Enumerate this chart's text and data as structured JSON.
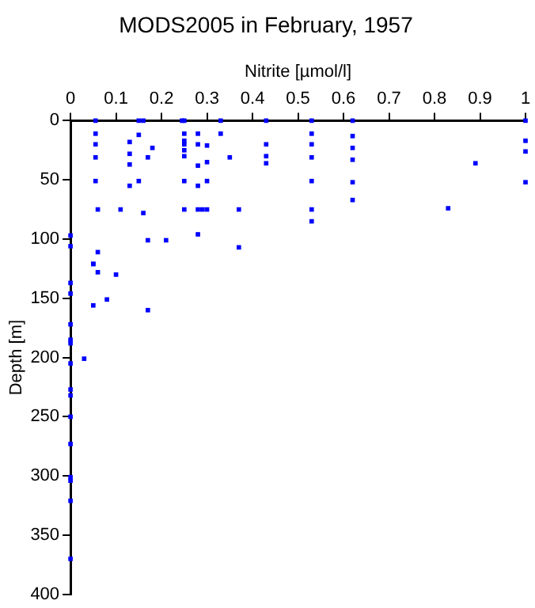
{
  "chart_data": {
    "type": "scatter",
    "title": "MODS2005 in February, 1957",
    "xlabel": "Nitrite [µmol/l]",
    "ylabel": "Depth [m]",
    "marker": "square",
    "grid": false,
    "legend": false,
    "xlim": [
      0,
      1
    ],
    "xticks": [
      0,
      0.1,
      0.2,
      0.3,
      0.4,
      0.5,
      0.6,
      0.7,
      0.8,
      0.9,
      1
    ],
    "ylim": [
      400,
      0
    ],
    "yticks": [
      0,
      50,
      100,
      150,
      200,
      250,
      300,
      350,
      400
    ],
    "series": [
      {
        "color": "#0000ff",
        "x": [
          0.055,
          0.055,
          0.055,
          0.055,
          0.055,
          0.06,
          0.06,
          0.05,
          0.13,
          0.13,
          0.13,
          0.13,
          0.11,
          0.15,
          0.15,
          0.15,
          0.16,
          0.16,
          0.17,
          0.18,
          0.17,
          0.21,
          0.25,
          0.25,
          0.25,
          0.25,
          0.25,
          0.25,
          0.25,
          0.25,
          0.245,
          0.28,
          0.28,
          0.28,
          0.28,
          0.28,
          0.28,
          0.3,
          0.3,
          0.3,
          0.3,
          0.29,
          0.33,
          0.33,
          0.35,
          0.37,
          0.37,
          0.43,
          0.43,
          0.43,
          0.43,
          0,
          0,
          0.53,
          0.53,
          0.53,
          0.53,
          0.53,
          0.53,
          0.53,
          0.62,
          0.62,
          0.62,
          0.62,
          0.62,
          0.62,
          0.89,
          0.83,
          1,
          1,
          1,
          1,
          0,
          0,
          0,
          0,
          0,
          0,
          0,
          0,
          0,
          0,
          0,
          0,
          0,
          0,
          0.05,
          0.08,
          0.17,
          0.03,
          0.05,
          0.06,
          0.1
        ],
        "values": [
          0,
          11,
          20,
          31,
          51,
          75,
          111,
          121,
          18,
          28,
          37,
          55,
          75,
          0,
          12,
          51,
          0,
          78,
          31,
          23,
          101,
          101,
          0,
          11,
          17,
          20,
          25,
          30,
          51,
          75,
          0,
          11,
          20,
          38,
          55,
          75,
          96,
          21,
          35,
          51,
          75,
          75,
          0,
          11,
          31,
          75,
          107,
          0,
          20,
          30,
          36,
          97,
          106,
          0,
          11,
          20,
          31,
          51,
          75,
          85,
          0,
          13,
          23,
          33,
          52,
          67,
          36,
          74,
          0,
          17,
          26,
          52,
          137,
          146,
          172,
          185,
          188,
          205,
          227,
          232,
          250,
          273,
          301,
          304,
          321,
          370,
          156,
          151,
          160,
          201,
          121,
          128,
          130
        ]
      }
    ]
  }
}
